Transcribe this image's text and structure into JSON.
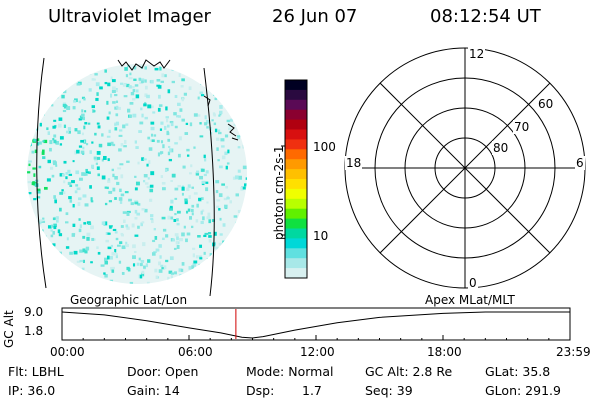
{
  "header": {
    "instrument": "Ultraviolet Imager",
    "date": "26 Jun 07",
    "time": "08:12:54 UT"
  },
  "colorbar": {
    "label": "photon cm-2s-1",
    "ticks": [
      "100",
      "10"
    ],
    "colors": [
      "#000022",
      "#2a0a40",
      "#5a0a55",
      "#8a0030",
      "#b00010",
      "#d81010",
      "#f03010",
      "#ff6a00",
      "#ff9a00",
      "#ffc000",
      "#ffe000",
      "#f0ff00",
      "#b8ff00",
      "#60f000",
      "#10e040",
      "#00d8a0",
      "#00d8d8",
      "#60e0e0",
      "#a8e8e8",
      "#d8f0f0"
    ]
  },
  "polar_grid": {
    "mlt_labels": {
      "top": "12",
      "left": "18",
      "right": "6",
      "bottom": "0"
    },
    "lat_labels": [
      "60",
      "70",
      "80"
    ]
  },
  "timeline": {
    "left_title": "Geographic Lat/Lon",
    "right_title": "Apex MLat/MLT",
    "y_label": "GC Alt",
    "y_ticks": [
      "9.0",
      "1.8"
    ],
    "x_ticks": [
      "00:00",
      "06:00",
      "12:00",
      "18:00",
      "23:59"
    ],
    "marker_time": "08:12:54",
    "altitude_curve": [
      {
        "t": 0,
        "alt": 9.0
      },
      {
        "t": 2,
        "alt": 8.2
      },
      {
        "t": 4,
        "alt": 6.6
      },
      {
        "t": 6,
        "alt": 4.6
      },
      {
        "t": 7.5,
        "alt": 3.2
      },
      {
        "t": 8.5,
        "alt": 2.0
      },
      {
        "t": 9,
        "alt": 1.8
      },
      {
        "t": 9.5,
        "alt": 2.2
      },
      {
        "t": 11,
        "alt": 4.0
      },
      {
        "t": 13,
        "alt": 6.0
      },
      {
        "t": 15,
        "alt": 7.5
      },
      {
        "t": 18,
        "alt": 8.6
      },
      {
        "t": 20,
        "alt": 9.0
      },
      {
        "t": 22,
        "alt": 9.0
      },
      {
        "t": 23.98,
        "alt": 9.0
      }
    ]
  },
  "info": {
    "row1": {
      "filter": "Flt: LBHL",
      "door": "Door: Open",
      "mode": "Mode: Normal",
      "gc_alt": "GC Alt: 2.8 Re",
      "glat": "GLat: 35.8"
    },
    "row2": {
      "ip": "IP: 36.0",
      "gain": "Gain: 14",
      "dsp_label": "Dsp:",
      "dsp_value": "1.7",
      "seq": "Seq: 39",
      "glon": "GLon: 291.9"
    }
  }
}
